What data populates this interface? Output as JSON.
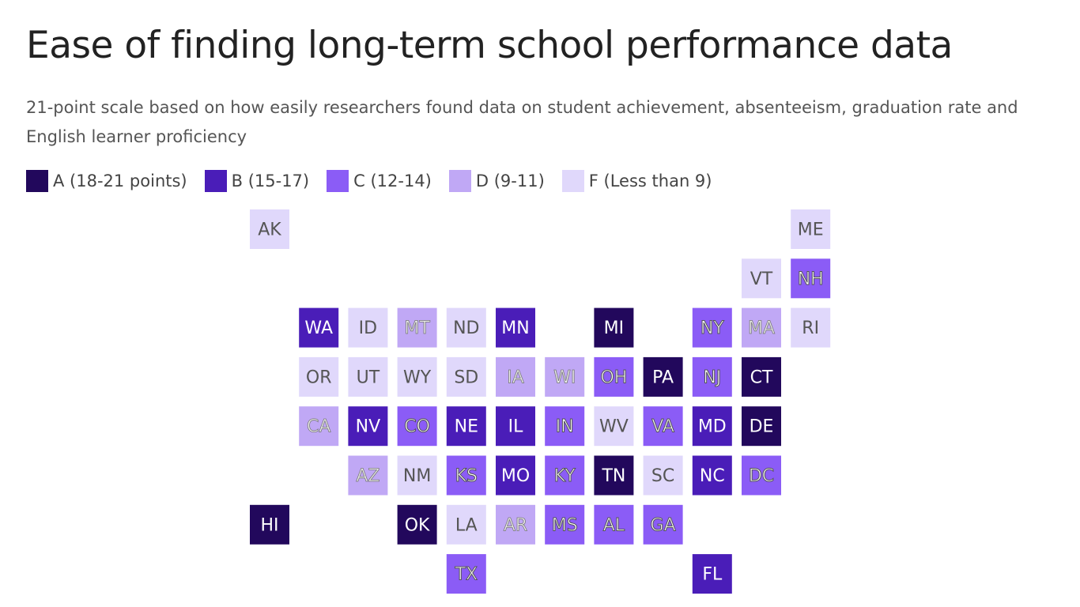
{
  "header": {
    "title": "Ease of finding long-term school performance data",
    "subtitle": "21-point scale based on how easily researchers found data on student achievement, absenteeism, graduation rate and English learner proficiency"
  },
  "legend": [
    {
      "label": "A (18-21 points)",
      "color": "#22085c"
    },
    {
      "label": "B (15-17)",
      "color": "#4a1db8"
    },
    {
      "label": "C (12-14)",
      "color": "#8b5cf6"
    },
    {
      "label": "D (9-11)",
      "color": "#c0a8f5"
    },
    {
      "label": "F (Less than 9)",
      "color": "#e0d8fb"
    }
  ],
  "tiles": [
    {
      "label": "AK",
      "color": "#e0d8fb"
    },
    {
      "label": "ME",
      "color": "#e0d8fb"
    },
    {
      "label": "VT",
      "color": "#e0d8fb"
    },
    {
      "label": "NH",
      "color": "#8b5cf6"
    },
    {
      "label": "WA",
      "color": "#4a1db8"
    },
    {
      "label": "ID",
      "color": "#e0d8fb"
    },
    {
      "label": "MT",
      "color": "#c0a8f5"
    },
    {
      "label": "ND",
      "color": "#e0d8fb"
    },
    {
      "label": "MN",
      "color": "#4a1db8"
    },
    {
      "label": "MI",
      "color": "#22085c"
    },
    {
      "label": "NY",
      "color": "#8b5cf6"
    },
    {
      "label": "MA",
      "color": "#c0a8f5"
    },
    {
      "label": "RI",
      "color": "#e0d8fb"
    },
    {
      "label": "OR",
      "color": "#e0d8fb"
    },
    {
      "label": "UT",
      "color": "#e0d8fb"
    },
    {
      "label": "WY",
      "color": "#e0d8fb"
    },
    {
      "label": "SD",
      "color": "#e0d8fb"
    },
    {
      "label": "IA",
      "color": "#c0a8f5"
    },
    {
      "label": "WI",
      "color": "#c0a8f5"
    },
    {
      "label": "OH",
      "color": "#8b5cf6"
    },
    {
      "label": "PA",
      "color": "#22085c"
    },
    {
      "label": "NJ",
      "color": "#8b5cf6"
    },
    {
      "label": "CT",
      "color": "#22085c"
    },
    {
      "label": "CA",
      "color": "#c0a8f5"
    },
    {
      "label": "NV",
      "color": "#4a1db8"
    },
    {
      "label": "CO",
      "color": "#8b5cf6"
    },
    {
      "label": "NE",
      "color": "#4a1db8"
    },
    {
      "label": "IL",
      "color": "#4a1db8"
    },
    {
      "label": "IN",
      "color": "#8b5cf6"
    },
    {
      "label": "WV",
      "color": "#e0d8fb"
    },
    {
      "label": "VA",
      "color": "#8b5cf6"
    },
    {
      "label": "MD",
      "color": "#4a1db8"
    },
    {
      "label": "DE",
      "color": "#22085c"
    },
    {
      "label": "AZ",
      "color": "#c0a8f5"
    },
    {
      "label": "NM",
      "color": "#e0d8fb"
    },
    {
      "label": "KS",
      "color": "#8b5cf6"
    },
    {
      "label": "MO",
      "color": "#4a1db8"
    },
    {
      "label": "KY",
      "color": "#8b5cf6"
    },
    {
      "label": "TN",
      "color": "#22085c"
    },
    {
      "label": "SC",
      "color": "#e0d8fb"
    },
    {
      "label": "NC",
      "color": "#4a1db8"
    },
    {
      "label": "DC",
      "color": "#8b5cf6"
    },
    {
      "label": "HI",
      "color": "#22085c"
    },
    {
      "label": "OK",
      "color": "#22085c"
    },
    {
      "label": "LA",
      "color": "#e0d8fb"
    },
    {
      "label": "AR",
      "color": "#c0a8f5"
    },
    {
      "label": "MS",
      "color": "#8b5cf6"
    },
    {
      "label": "AL",
      "color": "#8b5cf6"
    },
    {
      "label": "GA",
      "color": "#8b5cf6"
    },
    {
      "label": "TX",
      "color": "#8b5cf6"
    },
    {
      "label": "FL",
      "color": "#4a1db8"
    }
  ]
}
